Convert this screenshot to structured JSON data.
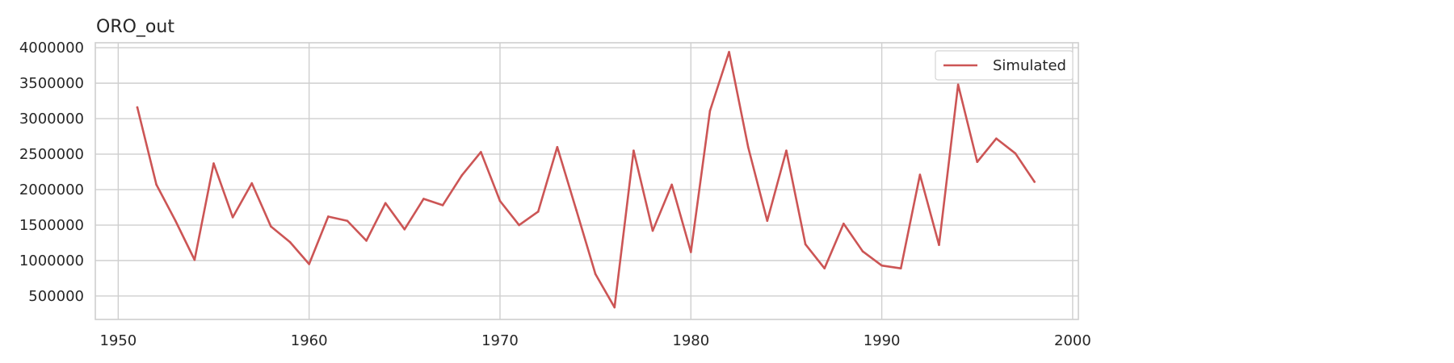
{
  "chart_data": {
    "type": "line",
    "title": "ORO_out",
    "xlabel": "",
    "ylabel": "",
    "xlim": [
      1948.8,
      2000.3
    ],
    "ylim": [
      170000,
      4070000
    ],
    "xticks": [
      1950,
      1960,
      1970,
      1980,
      1990,
      2000
    ],
    "yticks": [
      500000,
      1000000,
      1500000,
      2000000,
      2500000,
      3000000,
      3500000,
      4000000
    ],
    "grid": true,
    "legend": {
      "placement": "top-right",
      "entries": [
        "Simulated"
      ]
    },
    "colors": {
      "series": "#cc5555",
      "grid": "#cfcfcf",
      "axes": "#cfcfcf",
      "text": "#262626"
    },
    "series": [
      {
        "name": "Simulated",
        "x": [
          1951,
          1952,
          1953,
          1954,
          1955,
          1956,
          1957,
          1958,
          1959,
          1960,
          1961,
          1962,
          1963,
          1964,
          1965,
          1966,
          1967,
          1968,
          1969,
          1970,
          1971,
          1972,
          1973,
          1974,
          1975,
          1976,
          1977,
          1978,
          1979,
          1980,
          1981,
          1982,
          1983,
          1984,
          1985,
          1986,
          1987,
          1988,
          1989,
          1990,
          1991,
          1992,
          1993,
          1994,
          1995,
          1996,
          1997,
          1998
        ],
        "values": [
          3160000,
          2070000,
          1560000,
          1010000,
          2370000,
          1610000,
          2090000,
          1480000,
          1260000,
          950000,
          1620000,
          1560000,
          1280000,
          1810000,
          1440000,
          1870000,
          1780000,
          2200000,
          2530000,
          1840000,
          1500000,
          1690000,
          2600000,
          1710000,
          810000,
          340000,
          2550000,
          1420000,
          2070000,
          1120000,
          3110000,
          3940000,
          2600000,
          1560000,
          2550000,
          1230000,
          890000,
          1520000,
          1130000,
          930000,
          890000,
          2210000,
          1220000,
          3480000,
          2390000,
          2720000,
          2510000,
          2110000
        ]
      }
    ]
  }
}
